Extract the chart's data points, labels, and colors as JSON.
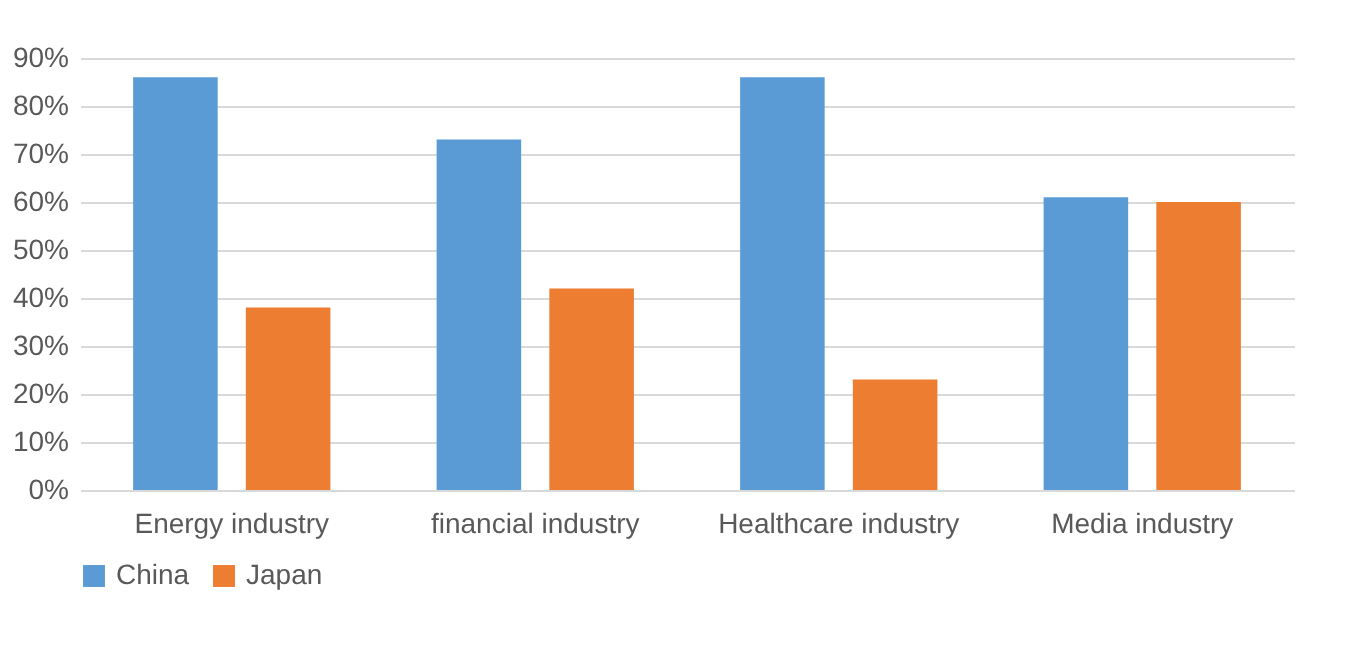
{
  "chart_data": {
    "type": "bar",
    "categories": [
      "Energy industry",
      "financial industry",
      "Healthcare industry",
      "Media industry"
    ],
    "series": [
      {
        "name": "China",
        "color": "#5b9bd5",
        "values": [
          86,
          73,
          86,
          61
        ]
      },
      {
        "name": "Japan",
        "color": "#ed7d31",
        "values": [
          38,
          42,
          23,
          60
        ]
      }
    ],
    "ylim": [
      0,
      90
    ],
    "yticks": [
      {
        "value": 0,
        "label": "0%"
      },
      {
        "value": 10,
        "label": "10%"
      },
      {
        "value": 20,
        "label": "20%"
      },
      {
        "value": 30,
        "label": "30%"
      },
      {
        "value": 40,
        "label": "40%"
      },
      {
        "value": 50,
        "label": "50%"
      },
      {
        "value": 60,
        "label": "60%"
      },
      {
        "value": 70,
        "label": "70%"
      },
      {
        "value": 80,
        "label": "80%"
      },
      {
        "value": 90,
        "label": "90%"
      }
    ],
    "grid": "y",
    "legend": "bottom"
  }
}
